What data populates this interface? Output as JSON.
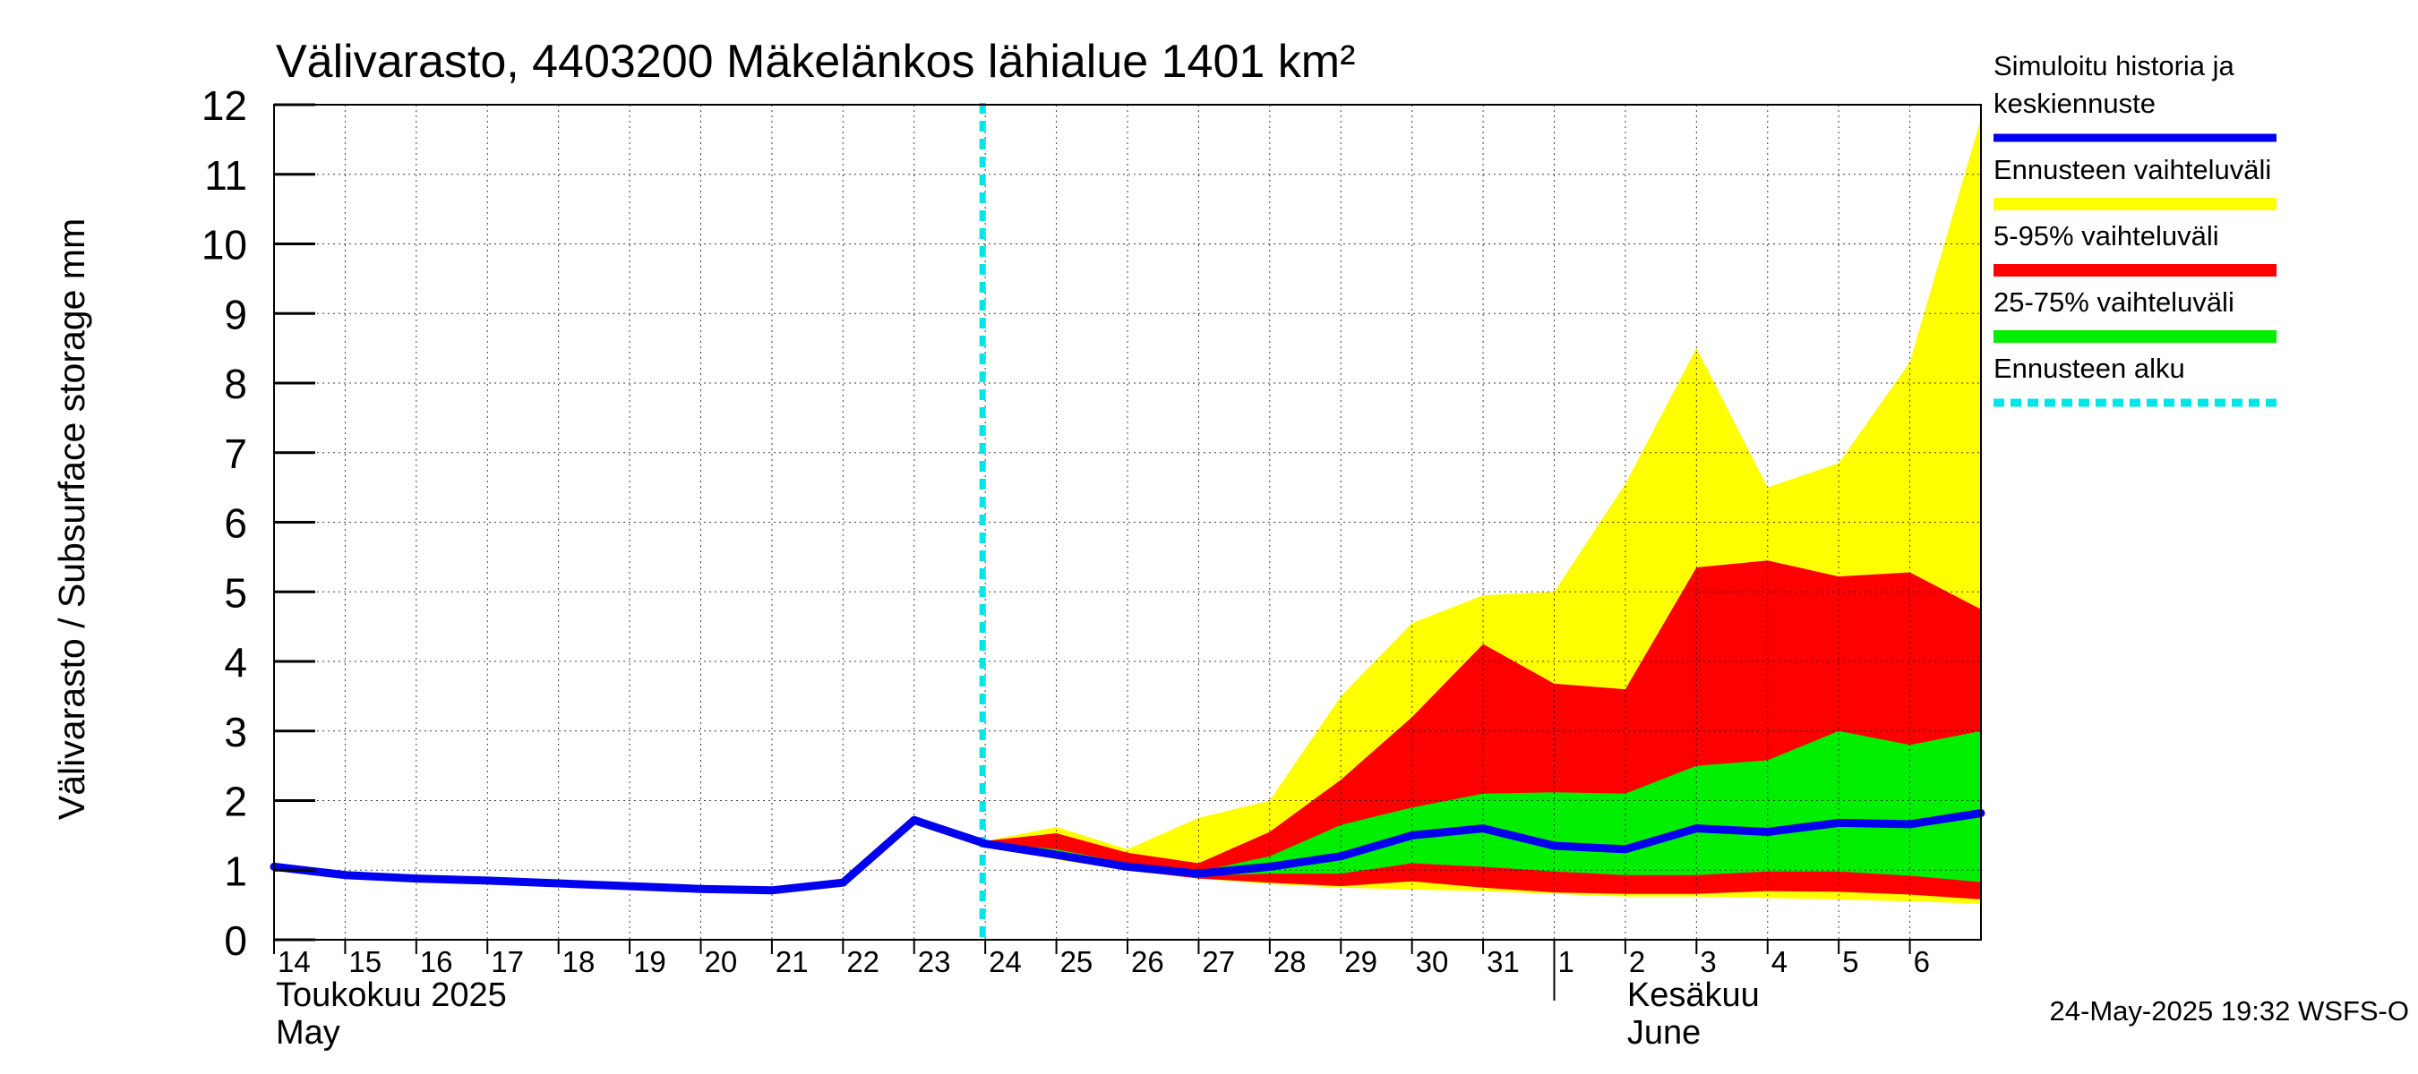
{
  "chart_data": {
    "type": "area",
    "title": "Välivarasto, 4403200 Mäkelänkos lähialue 1401 km²",
    "ylabel": "Välivarasto / Subsurface storage  mm",
    "ylim": [
      0,
      12
    ],
    "yticks": [
      0,
      1,
      2,
      3,
      4,
      5,
      6,
      7,
      8,
      9,
      10,
      11,
      12
    ],
    "xlim": [
      0,
      24
    ],
    "x_tick_labels": [
      "14",
      "15",
      "16",
      "17",
      "18",
      "19",
      "20",
      "21",
      "22",
      "23",
      "24",
      "25",
      "26",
      "27",
      "28",
      "29",
      "30",
      "31",
      "1",
      "2",
      "3",
      "4",
      "5",
      "6"
    ],
    "month_labels": [
      {
        "line1": "Toukokuu  2025",
        "line2": "May",
        "at": 0
      },
      {
        "line1": "Kesäkuu",
        "line2": "June",
        "at": 19
      }
    ],
    "month_boundary_x": 18,
    "grid": true,
    "forecast_start_x": 10,
    "legend_position": "right",
    "legend": [
      {
        "label_lines": [
          "Simuloitu historia ja",
          "keskiennuste"
        ],
        "color": "#0000ee",
        "style": "line"
      },
      {
        "label_lines": [
          "Ennusteen vaihteluväli"
        ],
        "color": "#ffff00",
        "style": "band"
      },
      {
        "label_lines": [
          "5-95% vaihteluväli"
        ],
        "color": "#ff0000",
        "style": "band"
      },
      {
        "label_lines": [
          "25-75% vaihteluväli"
        ],
        "color": "#00ee00",
        "style": "band"
      },
      {
        "label_lines": [
          "Ennusteen alku"
        ],
        "color": "#00e5e5",
        "style": "dashed"
      }
    ],
    "history": {
      "x": [
        0,
        1,
        2,
        3,
        4,
        5,
        6,
        7,
        8,
        9,
        10
      ],
      "y": [
        1.05,
        0.93,
        0.88,
        0.85,
        0.81,
        0.77,
        0.73,
        0.71,
        0.82,
        1.72,
        1.38
      ]
    },
    "bands": {
      "x": [
        10,
        11,
        12,
        13,
        14,
        15,
        16,
        17,
        18,
        19,
        20,
        21,
        22,
        23,
        24
      ],
      "full": {
        "lower": [
          1.38,
          1.15,
          1.0,
          0.88,
          0.8,
          0.75,
          0.72,
          0.7,
          0.66,
          0.62,
          0.62,
          0.6,
          0.58,
          0.55,
          0.52
        ],
        "upper": [
          1.42,
          1.62,
          1.3,
          1.75,
          2.0,
          3.5,
          4.55,
          4.95,
          5.0,
          6.55,
          8.5,
          6.5,
          6.85,
          8.3,
          11.8
        ]
      },
      "p5_95": {
        "lower": [
          1.38,
          1.17,
          1.0,
          0.88,
          0.82,
          0.77,
          0.84,
          0.75,
          0.68,
          0.66,
          0.66,
          0.7,
          0.69,
          0.65,
          0.58
        ],
        "upper": [
          1.42,
          1.53,
          1.25,
          1.1,
          1.55,
          2.3,
          3.2,
          4.25,
          3.68,
          3.6,
          5.35,
          5.45,
          5.22,
          5.28,
          4.75
        ]
      },
      "p25_75": {
        "lower": [
          1.38,
          1.2,
          1.02,
          0.92,
          0.95,
          0.95,
          1.1,
          1.05,
          0.98,
          0.93,
          0.93,
          0.98,
          0.98,
          0.92,
          0.83
        ],
        "upper": [
          1.4,
          1.3,
          1.1,
          0.98,
          1.2,
          1.65,
          1.9,
          2.1,
          2.12,
          2.1,
          2.5,
          2.58,
          3.0,
          2.8,
          3.0
        ]
      }
    },
    "median_forecast": {
      "x": [
        10,
        11,
        12,
        13,
        14,
        15,
        16,
        17,
        18,
        19,
        20,
        21,
        22,
        23,
        24
      ],
      "y": [
        1.38,
        1.22,
        1.05,
        0.95,
        1.05,
        1.2,
        1.5,
        1.6,
        1.35,
        1.3,
        1.6,
        1.55,
        1.68,
        1.66,
        1.82
      ]
    }
  },
  "footer": {
    "timestamp": "24-May-2025 19:32 WSFS-O"
  }
}
